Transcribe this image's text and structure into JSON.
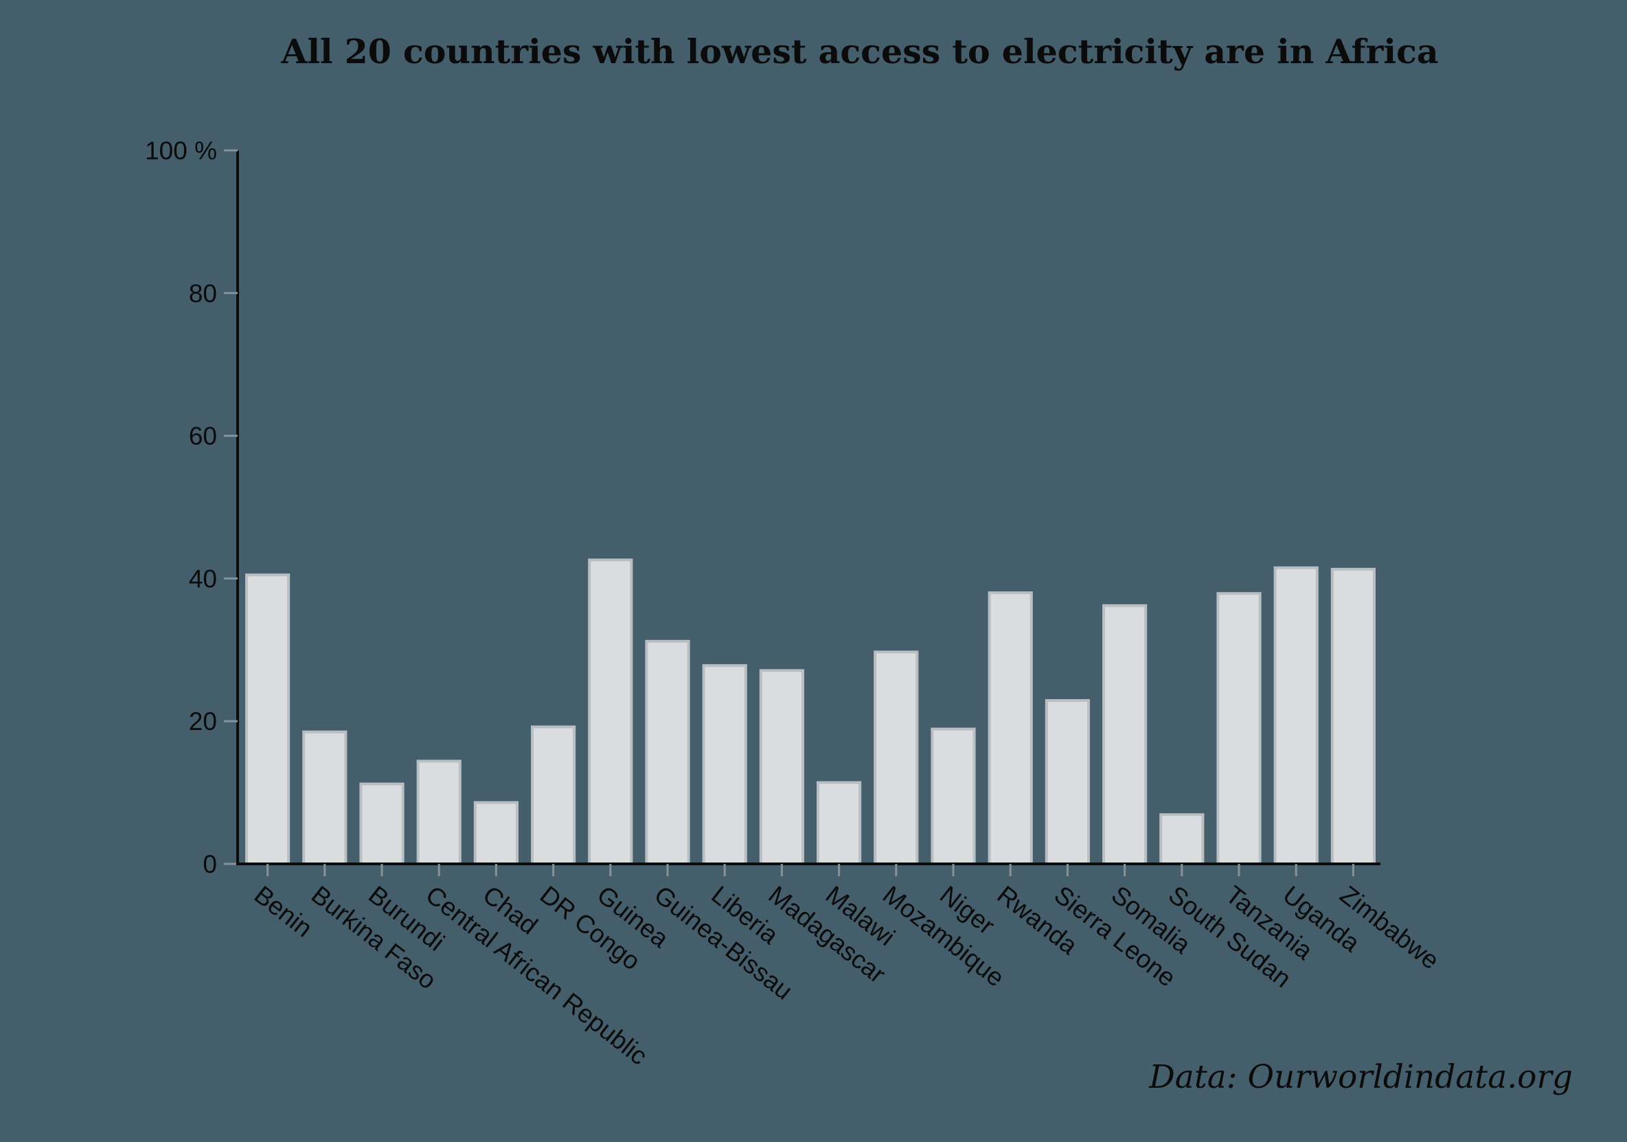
{
  "chart_data": {
    "type": "bar",
    "title": "All 20 countries with lowest access to electricity are in Africa",
    "source": "Data: Ourworldindata.org",
    "xlabel": "",
    "ylabel": "",
    "ylim": [
      0,
      100
    ],
    "y_ticks": [
      0,
      20,
      40,
      60,
      80,
      100
    ],
    "y_tick_labels": [
      "0",
      "20",
      "40",
      "60",
      "80",
      "100 %"
    ],
    "grid": false,
    "categories": [
      "Benin",
      "Burkina Faso",
      "Burundi",
      "Central African Republic",
      "Chad",
      "DR Congo",
      "Guinea",
      "Guinea-Bissau",
      "Liberia",
      "Madagascar",
      "Malawi",
      "Mozambique",
      "Niger",
      "Rwanda",
      "Sierra Leone",
      "Somalia",
      "South Sudan",
      "Tanzania",
      "Uganda",
      "Zimbabwe"
    ],
    "values": [
      40.5,
      18.5,
      11.2,
      14.4,
      8.6,
      19.2,
      42.6,
      31.2,
      27.8,
      27.1,
      11.4,
      29.7,
      18.9,
      38.0,
      22.9,
      36.2,
      6.9,
      37.9,
      41.5,
      41.3
    ],
    "colors": {
      "background": "#445f6b",
      "bar_fill": "#d9dde0",
      "bar_stroke": "#b9bec3",
      "axis": "#0b0b0b",
      "text": "#0b0b0b"
    }
  }
}
